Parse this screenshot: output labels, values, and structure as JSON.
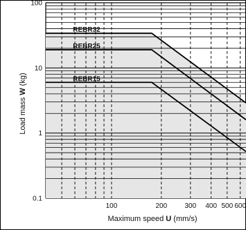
{
  "chart_data": {
    "type": "line",
    "x_scale": "log",
    "y_scale": "log",
    "xlim": [
      40,
      650
    ],
    "ylim": [
      0.1,
      100
    ],
    "x_ticks": [
      100,
      200,
      300,
      400,
      500,
      600
    ],
    "y_ticks": [
      0.1,
      1,
      10,
      100
    ],
    "x_tick_labels": [
      "100",
      "200",
      "300",
      "400",
      "500",
      "600"
    ],
    "y_tick_labels": [
      "0.1",
      "1",
      "10",
      "100"
    ],
    "xlabel_text": "Maximum speed ",
    "xlabel_bold": "U",
    "xlabel_unit": " (mm/s)",
    "ylabel_text": "Load mass ",
    "ylabel_bold": "W",
    "ylabel_unit": " (kg)",
    "series": [
      {
        "name": "REBR32",
        "x": [
          40,
          175,
          650
        ],
        "y": [
          34,
          34,
          2.9
        ]
      },
      {
        "name": "REBR25",
        "x": [
          40,
          175,
          650
        ],
        "y": [
          19,
          19,
          1.6
        ]
      },
      {
        "name": "REBR15",
        "x": [
          40,
          175,
          650
        ],
        "y": [
          6,
          6,
          0.52
        ]
      }
    ],
    "grid": true
  }
}
